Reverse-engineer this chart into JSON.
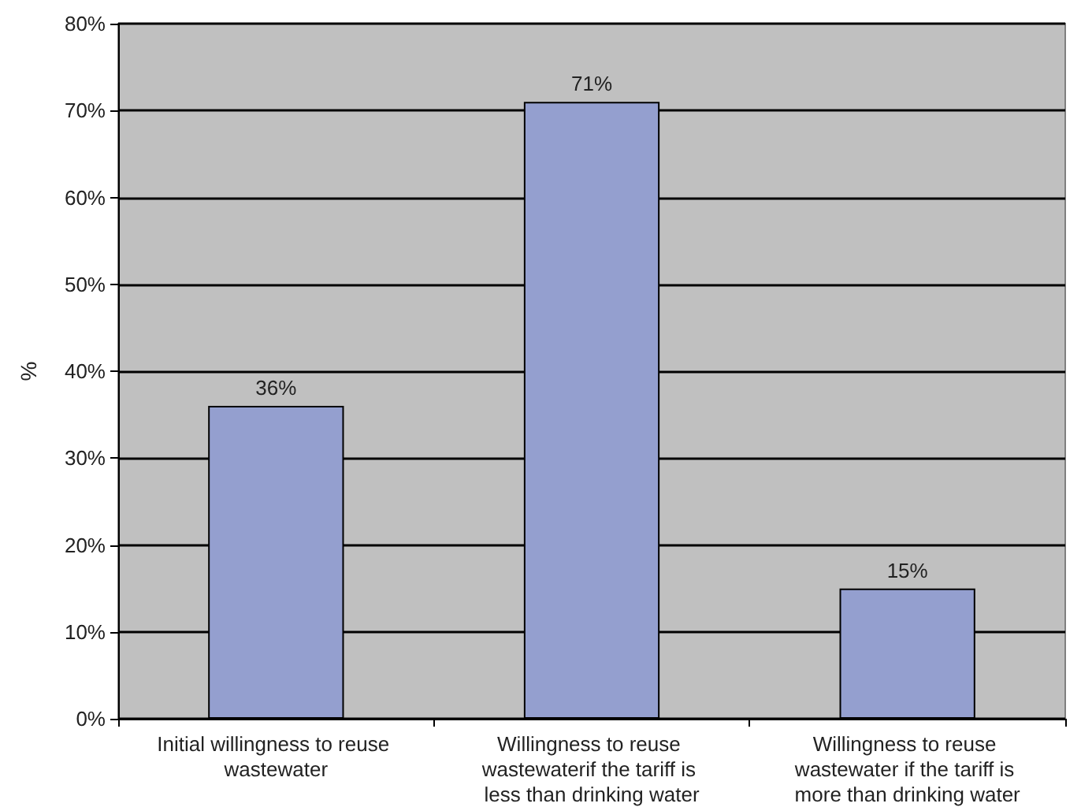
{
  "chart_data": {
    "type": "bar",
    "ylabel": "%",
    "categories": [
      "Initial willingness to reuse wastewater",
      "Willingness to reuse wastewaterif the tariff is less than drinking water",
      "Willingness to reuse wastewater if the tariff is more than drinking water"
    ],
    "values": [
      36,
      71,
      15
    ],
    "value_labels": [
      "36%",
      "71%",
      "15%"
    ],
    "color": "#949fcf",
    "ylim": [
      0,
      80
    ],
    "yticks": [
      {
        "value": 0,
        "label": "0%"
      },
      {
        "value": 10,
        "label": "10%"
      },
      {
        "value": 20,
        "label": "20%"
      },
      {
        "value": 30,
        "label": "30%"
      },
      {
        "value": 40,
        "label": "40%"
      },
      {
        "value": 50,
        "label": "50%"
      },
      {
        "value": 60,
        "label": "60%"
      },
      {
        "value": 70,
        "label": "70%"
      },
      {
        "value": 80,
        "label": "80%"
      }
    ],
    "grid": true
  }
}
